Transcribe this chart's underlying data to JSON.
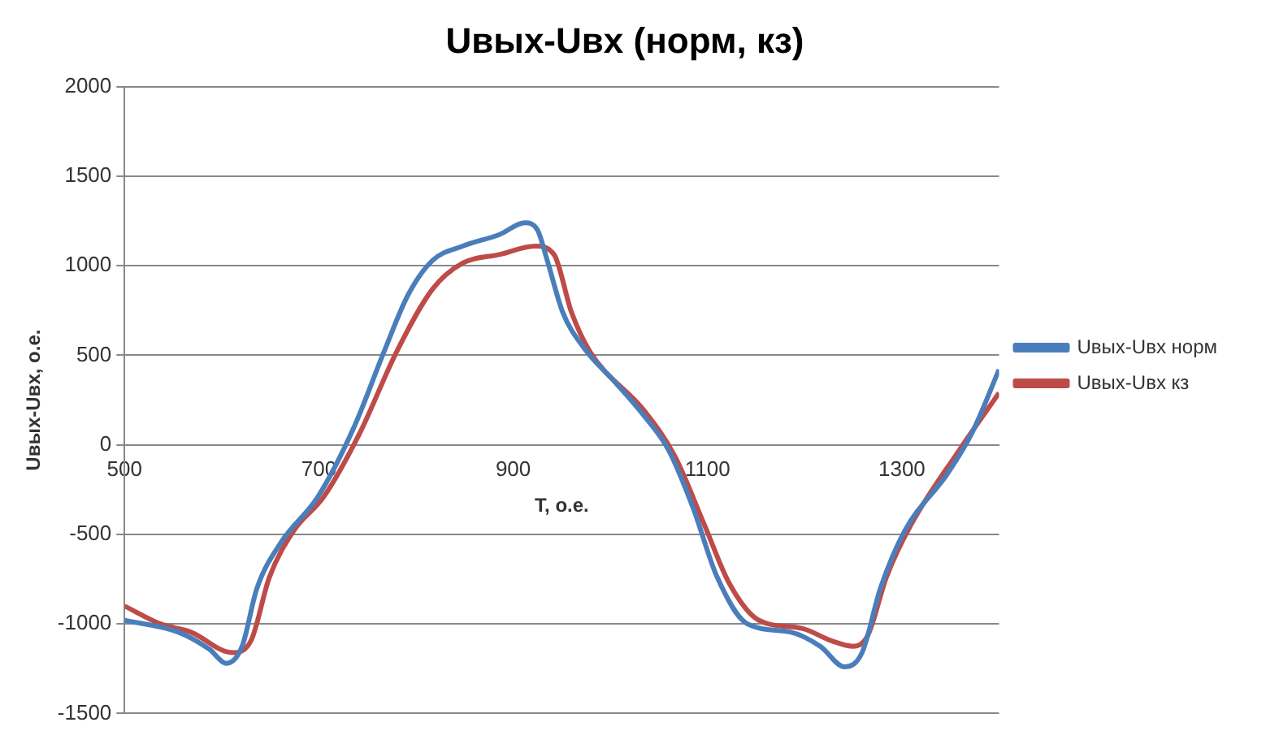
{
  "chart_data": {
    "type": "line",
    "title": "Uвых-Uвх (норм, кз)",
    "xlabel": "T, о.е.",
    "ylabel": "Uвых-Uвх, о.е.",
    "xlim": [
      500,
      1400
    ],
    "xticks": [
      500,
      700,
      900,
      1100,
      1300
    ],
    "ylim": [
      -1500,
      2000
    ],
    "yticks": [
      -1500,
      -1000,
      -500,
      0,
      500,
      1000,
      1500,
      2000
    ],
    "grid": "y",
    "legend": "right",
    "marker": "none",
    "line_style": "solid",
    "series": [
      {
        "name": "Uвых-Uвх норм",
        "color": "#4a7ebb",
        "x": [
          500,
          555,
          587,
          605,
          621,
          636,
          661,
          699,
          736,
          767,
          792,
          817,
          848,
          886,
          912,
          925,
          935,
          951,
          973,
          1004,
          1035,
          1060,
          1085,
          1110,
          1141,
          1185,
          1216,
          1241,
          1259,
          1278,
          1303,
          1347,
          1372,
          1400
        ],
        "values": [
          -980,
          -1045,
          -1140,
          -1220,
          -1125,
          -805,
          -545,
          -290,
          97,
          520,
          840,
          1030,
          1110,
          1175,
          1240,
          1200,
          1030,
          740,
          540,
          355,
          160,
          -30,
          -350,
          -740,
          -1000,
          -1045,
          -1125,
          -1240,
          -1160,
          -800,
          -480,
          -160,
          65,
          420
        ]
      },
      {
        "name": "Uвых-Uвх кз",
        "color": "#be4b48",
        "x": [
          500,
          537,
          568,
          611,
          630,
          649,
          674,
          705,
          742,
          780,
          817,
          848,
          886,
          923,
          942,
          960,
          979,
          1035,
          1066,
          1097,
          1122,
          1153,
          1197,
          1228,
          1250,
          1265,
          1284,
          1309,
          1359,
          1400
        ],
        "values": [
          -900,
          -1000,
          -1045,
          -1160,
          -1095,
          -740,
          -480,
          -290,
          65,
          520,
          870,
          1015,
          1063,
          1110,
          1063,
          740,
          520,
          190,
          -60,
          -450,
          -770,
          -980,
          -1025,
          -1095,
          -1125,
          -1063,
          -740,
          -450,
          -30,
          290
        ]
      }
    ]
  }
}
